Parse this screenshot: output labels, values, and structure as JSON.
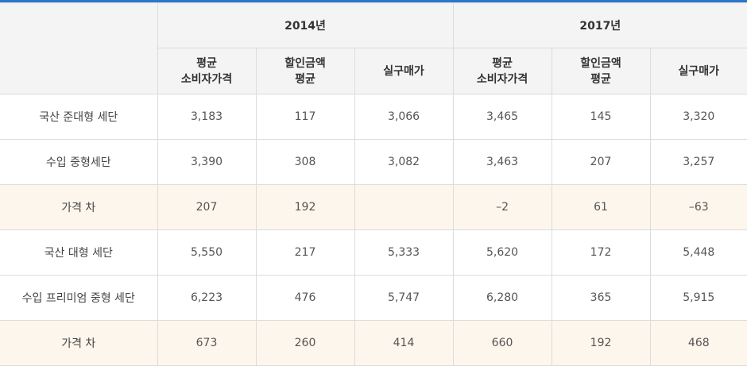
{
  "header": {
    "corner": "",
    "years": [
      "2014년",
      "2017년"
    ],
    "columns": [
      "평균\n소비자가격",
      "할인금액\n평균",
      "실구매가",
      "평균\n소비자가격",
      "할인금액\n평균",
      "실구매가"
    ]
  },
  "rows": [
    {
      "label": "국산 준대형 세단",
      "values": [
        "3,183",
        "117",
        "3,066",
        "3,465",
        "145",
        "3,320"
      ],
      "highlight": false
    },
    {
      "label": "수입 중형세단",
      "values": [
        "3,390",
        "308",
        "3,082",
        "3,463",
        "207",
        "3,257"
      ],
      "highlight": false
    },
    {
      "label": "가격 차",
      "values": [
        "207",
        "192",
        "",
        "–2",
        "61",
        "–63"
      ],
      "highlight": true
    },
    {
      "label": "국산 대형 세단",
      "values": [
        "5,550",
        "217",
        "5,333",
        "5,620",
        "172",
        "5,448"
      ],
      "highlight": false
    },
    {
      "label": "수입 프리미엄 중형 세단",
      "values": [
        "6,223",
        "476",
        "5,747",
        "6,280",
        "365",
        "5,915"
      ],
      "highlight": false
    },
    {
      "label": "가격 차",
      "values": [
        "673",
        "260",
        "414",
        "660",
        "192",
        "468"
      ],
      "highlight": true
    }
  ],
  "colors": {
    "top_rule": "#2a78c8",
    "header_bg": "#f4f4f4",
    "diff_row_bg": "#fdf6ec"
  }
}
